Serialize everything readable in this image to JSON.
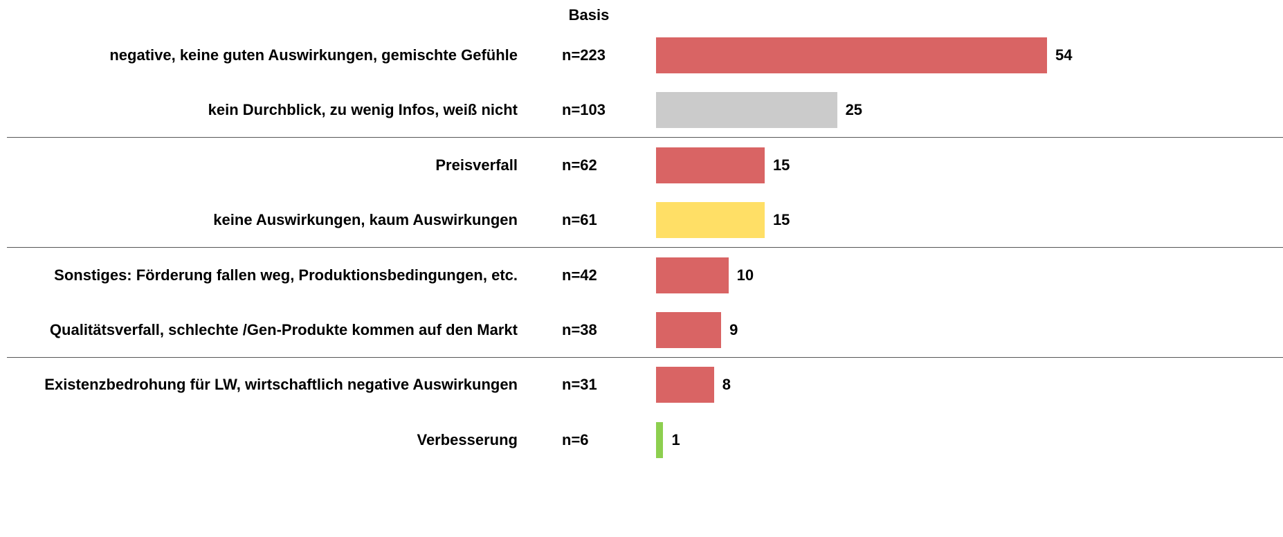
{
  "chart_data": {
    "type": "bar",
    "orientation": "horizontal",
    "basis_header": "Basis",
    "categories": [
      "negative, keine guten Auswirkungen, gemischte Gefühle",
      "kein Durchblick, zu wenig Infos, weiß nicht",
      "Preisverfall",
      "keine Auswirkungen, kaum Auswirkungen",
      "Sonstiges: Förderung fallen weg, Produktionsbedingungen, etc.",
      "Qualitätsverfall, schlechte /Gen-Produkte kommen auf den Markt",
      "Existenzbedrohung für LW, wirtschaftlich negative Auswirkungen",
      "Verbesserung"
    ],
    "basis": [
      "n=223",
      "n=103",
      "n=62",
      "n=61",
      "n=42",
      "n=38",
      "n=31",
      "n=6"
    ],
    "values": [
      54,
      25,
      15,
      15,
      10,
      9,
      8,
      1
    ],
    "colors": [
      "#d96464",
      "#cbcbcb",
      "#d96464",
      "#ffdf66",
      "#d96464",
      "#d96464",
      "#d96464",
      "#8dcf4f"
    ]
  }
}
